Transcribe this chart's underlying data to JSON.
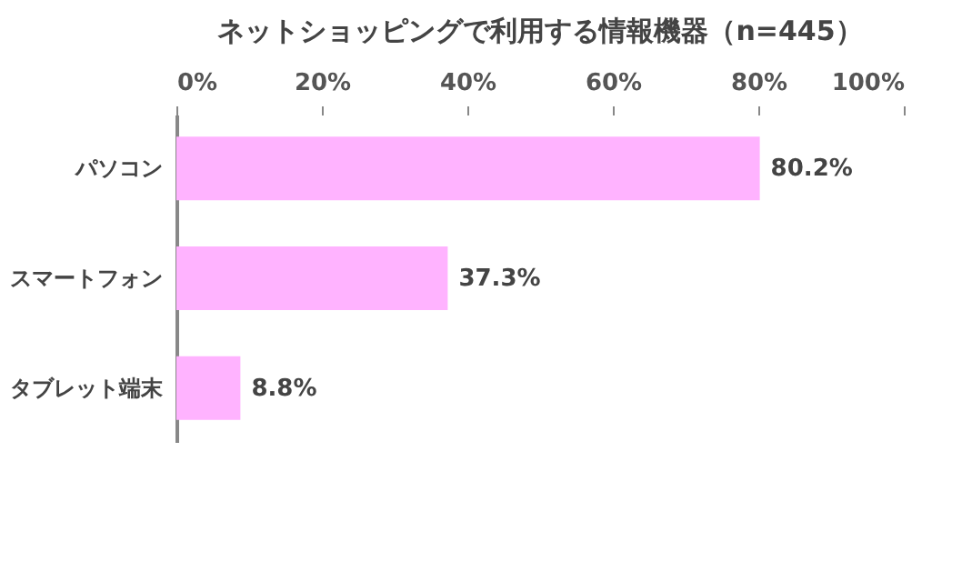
{
  "chart_data": {
    "type": "bar",
    "orientation": "horizontal",
    "title": "ネットショッピングで利用する情報機器（n=445）",
    "categories": [
      "パソコン",
      "スマートフォン",
      "タブレット端末"
    ],
    "values": [
      80.2,
      37.3,
      8.8
    ],
    "value_labels": [
      "80.2%",
      "37.3%",
      "8.8%"
    ],
    "color": "#ffb3ff",
    "xlim": [
      0,
      100
    ],
    "xticks": [
      {
        "value": 0,
        "label": "0%"
      },
      {
        "value": 20,
        "label": "20%"
      },
      {
        "value": 40,
        "label": "40%"
      },
      {
        "value": 60,
        "label": "60%"
      },
      {
        "value": 80,
        "label": "80%"
      },
      {
        "value": 100,
        "label": "100%"
      }
    ],
    "grid": false
  }
}
